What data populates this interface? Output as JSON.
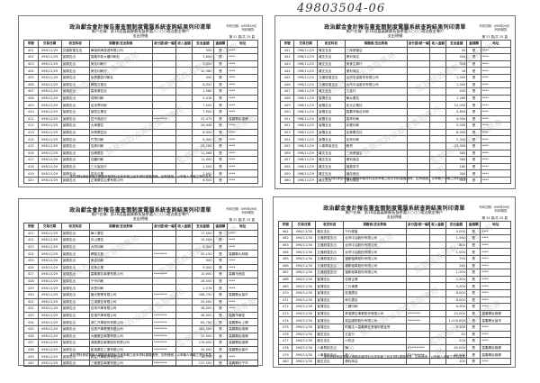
{
  "document_number": "49803504-06",
  "common": {
    "title": "政治獻金會計報告書查閱制度電腦系統查詢結果列印清單",
    "account": "帳戶名稱：第16屆嘉義縣縣長擬參選人○○○政治獻金專戶",
    "section": "支出明細",
    "meta_line1": "列印日期：099年09月",
    "meta_line2": "列印時間：",
    "headers": [
      "序號",
      "交易日期",
      "收支科目",
      "捐贈者/支出對象",
      "身分證/統一編號",
      "收入金額",
      "支出金額",
      "金錢類",
      "地址"
    ],
    "footer": "本件資料係依申報人網路申報資料及其申報之紙本資料建檔清冊，如有錯誤，以申報人申報之資料為準。",
    "watermark": "監察院政治獻金查閱專用"
  },
  "pages": [
    {
      "page_label": "第 21 頁/共 25 頁",
      "rows": [
        [
          "401",
          "098/11/29",
          "交通旅運支出",
          "華榮和海旅遊有限公司",
          "",
          "",
          "500",
          "是",
          "****"
        ],
        [
          "402",
          "098/11/29",
          "宣傳支出",
          "嘉義市新大樓印刷社",
          "",
          "",
          "3,600",
          "是",
          "****"
        ],
        [
          "403",
          "098/11/29",
          "宣傳支出",
          "美佳印刷行",
          "",
          "",
          "3,000",
          "是",
          "****"
        ],
        [
          "404",
          "098/11/29",
          "宣傳支出",
          "美佳印刷行",
          "",
          "",
          "10,360",
          "是",
          "****"
        ],
        [
          "405",
          "098/11/29",
          "宣傳支出",
          "永興廣告印刷社",
          "",
          "",
          "450",
          "是",
          "****"
        ],
        [
          "406",
          "098/11/29",
          "宣傳支出",
          "網路文藝社",
          "",
          "",
          "6,552",
          "是",
          "****"
        ],
        [
          "407",
          "098/11/29",
          "宣傳支出",
          "嘉美廣告社",
          "",
          "",
          "1,560",
          "是",
          "****"
        ],
        [
          "408",
          "098/11/29",
          "宣傳支出",
          "成興印刷",
          "",
          "",
          "5,418",
          "是",
          "****"
        ],
        [
          "409",
          "098/11/29",
          "宣傳支出",
          "佳世界印刷",
          "",
          "",
          "7,500",
          "是",
          "****"
        ],
        [
          "410",
          "098/11/29",
          "宣傳支出",
          "晉陞企業社",
          "",
          "",
          "7,900",
          "是",
          "****"
        ],
        [
          "411",
          "098/11/29",
          "宣傳支出",
          "四代商品行",
          "********",
          "",
          "37,475",
          "是",
          "嘉義縣民雄鄉"
        ],
        [
          "412",
          "098/11/29",
          "宣傳支出",
          "大東廣告",
          "",
          "",
          "28,448",
          "是",
          "****"
        ],
        [
          "413",
          "098/11/29",
          "宣傳支出",
          "永興廣告社",
          "",
          "",
          "6,000",
          "是",
          "****"
        ],
        [
          "414",
          "098/11/29",
          "宣傳支出",
          "竹寬印刷",
          "",
          "",
          "8,000",
          "是",
          "****"
        ],
        [
          "415",
          "098/11/29",
          "宣傳支出",
          "佳美印刷",
          "",
          "",
          "29,250",
          "是",
          "****"
        ],
        [
          "416",
          "098/11/29",
          "宣傳支出",
          "佳網廣告",
          "",
          "",
          "11,066",
          "是",
          "****"
        ],
        [
          "417",
          "098/11/29",
          "宣傳支出",
          "佳鵬印刷",
          "",
          "",
          "11,000",
          "是",
          "****"
        ],
        [
          "418",
          "098/11/29",
          "宣傳支出",
          "三元宣品行",
          "",
          "",
          "1,500",
          "是",
          "****"
        ],
        [
          "419",
          "098/11/29",
          "宣傳支出",
          "宏佳企業",
          "",
          "",
          "2,000",
          "是",
          "****"
        ],
        [
          "420",
          "098/11/29",
          "宣傳支出",
          "正揚廣告企業有限公司",
          "",
          "",
          "6,500",
          "是",
          "****"
        ]
      ]
    },
    {
      "page_label": "第 23 頁/共 25 頁",
      "rows": [
        [
          "441",
          "098/11/29",
          "雜支支出",
          "三商便當店",
          "",
          "",
          "50",
          "是",
          "****"
        ],
        [
          "442",
          "098/11/29",
          "雜支支出",
          "便利商店",
          "",
          "",
          "400",
          "是",
          "****"
        ],
        [
          "443",
          "098/11/29",
          "雜支支出",
          "美食生鮮行",
          "",
          "",
          "316",
          "是",
          "****"
        ],
        [
          "444",
          "098/11/29",
          "雜支支出",
          "便利商店",
          "",
          "",
          "16",
          "是",
          "****"
        ],
        [
          "445",
          "098/11/29",
          "交通旅運支出",
          "台灣中油股份有限公司",
          "",
          "",
          "1,000",
          "是",
          "****"
        ],
        [
          "446",
          "098/11/29",
          "交通旅運支出",
          "台灣中油股份有限公司",
          "",
          "",
          "1,000",
          "是",
          "****"
        ],
        [
          "447",
          "098/11/29",
          "雜支支出",
          "五金行",
          "",
          "",
          "450",
          "是",
          "****"
        ],
        [
          "448",
          "098/11/29",
          "宣傳支出",
          "華太廣告",
          "",
          "",
          "1,260",
          "是",
          "****"
        ],
        [
          "449",
          "098/11/29",
          "宣傳支出",
          "佳元企業社",
          "",
          "",
          "12,000",
          "是",
          "****"
        ],
        [
          "450",
          "098/11/29",
          "宣傳支出",
          "嘉義市聯合印刷",
          "",
          "",
          "4,850",
          "是",
          "****"
        ],
        [
          "451",
          "098/11/29",
          "宣傳支出",
          "嘉禾印刷",
          "",
          "",
          "4,950",
          "是",
          "****"
        ],
        [
          "452",
          "098/11/29",
          "宣傳支出",
          "永業印刷",
          "",
          "",
          "5,000",
          "是",
          "****"
        ],
        [
          "453",
          "098/11/29",
          "宣傳支出",
          "佳美廣告社",
          "",
          "",
          "6,000",
          "是",
          "****"
        ],
        [
          "454",
          "098/11/29",
          "宣傳支出",
          "佳禾印刷",
          "",
          "",
          "2,350",
          "是",
          "****"
        ],
        [
          "455",
          "098/11/29",
          "人事費用支出",
          "薪資",
          "",
          "",
          "23,900",
          "是",
          "****"
        ],
        [
          "456",
          "098/11/29",
          "雜支支出",
          "三商便當店",
          "",
          "",
          "560",
          "是",
          "****"
        ],
        [
          "457",
          "098/11/29",
          "雜支支出",
          "便利商店",
          "",
          "",
          "560",
          "是",
          "****"
        ],
        [
          "458",
          "098/11/29",
          "雜支支出",
          "福壽茶坊",
          "",
          "",
          "180",
          "是",
          "****"
        ],
        [
          "459",
          "098/11/29",
          "雜支支出",
          "福佳食品",
          "",
          "",
          "300",
          "是",
          "****"
        ],
        [
          "460",
          "098/11/29",
          "雜支支出",
          "便利商店",
          "",
          "",
          "350",
          "是",
          "****"
        ]
      ]
    },
    {
      "page_label": "第 22 頁/共 25 頁",
      "rows": [
        [
          "421",
          "098/11/29",
          "宣傳支出",
          "華人廣告",
          "",
          "",
          "17,000",
          "是",
          "****"
        ],
        [
          "422",
          "098/11/29",
          "宣傳支出",
          "中山廣告",
          "",
          "",
          "15,000",
          "是",
          "****"
        ],
        [
          "423",
          "098/11/29",
          "宣傳支出",
          "大同印刷",
          "",
          "",
          "4,500",
          "是",
          "****"
        ],
        [
          "424",
          "098/11/29",
          "宣傳支出",
          "網路文藝",
          "********",
          "",
          "45,150",
          "是",
          "嘉義縣大林鎮"
        ],
        [
          "425",
          "098/11/29",
          "宣傳支出",
          "美佳印刷",
          "",
          "",
          "500",
          "是",
          "****"
        ],
        [
          "426",
          "098/11/29",
          "宣傳支出",
          "佳美企業",
          "",
          "",
          "9,000",
          "是",
          "****"
        ],
        [
          "427",
          "098/11/29",
          "宣傳支出",
          "嘉義廣告事業有限公司",
          "********",
          "",
          "10,000",
          "是",
          "嘉義市西區"
        ],
        [
          "428",
          "098/11/29",
          "宣傳支出",
          "千代印刷",
          "",
          "",
          "28,000",
          "是",
          "****"
        ],
        [
          "429",
          "098/11/29",
          "宣傳支出",
          "永豐印刷",
          "",
          "",
          "2,576",
          "是",
          "****"
        ],
        [
          "430",
          "098/11/29",
          "宣傳支出",
          "國光實業有限公司",
          "********",
          "",
          "168,750",
          "是",
          "嘉義縣太保市"
        ],
        [
          "431",
          "098/11/29",
          "宣傳支出",
          "立達廣告有限公司",
          "",
          "",
          "25,000",
          "是",
          "****"
        ],
        [
          "432",
          "098/11/29",
          "宣傳支出",
          "佳禾汽車有限公司",
          "",
          "",
          "36,000",
          "是",
          "****"
        ],
        [
          "433",
          "098/11/29",
          "宣傳支出",
          "宏達汽車有限公司",
          "********",
          "",
          "48,000",
          "是",
          "嘉義市東區"
        ],
        [
          "434",
          "098/11/29",
          "宣傳支出",
          "鴻仁汽車股份有限公司",
          "********",
          "",
          "84,750",
          "是",
          "嘉義縣水上鄉"
        ],
        [
          "435",
          "098/11/29",
          "宣傳支出",
          "佳昌汽車實業有限公司",
          "********",
          "",
          "262,000",
          "是",
          "嘉義縣民雄鄉"
        ],
        [
          "436",
          "098/11/29",
          "宣傳支出",
          "大鵬廣告事業有限公司",
          "********",
          "",
          "32,000",
          "是",
          "嘉義縣民雄鄉"
        ],
        [
          "437",
          "098/11/29",
          "宣傳支出",
          "鴻展廣告事業股份有限公司",
          "********",
          "",
          "176,000",
          "是",
          "嘉義縣民雄鄉"
        ],
        [
          "438",
          "098/11/29",
          "宣傳支出",
          "凱達廣告工業有限公司",
          "********",
          "",
          "35,000",
          "是",
          "嘉義縣太保市"
        ],
        [
          "439",
          "098/11/29",
          "宣傳支出",
          "新益汽車股份有限公司",
          "",
          "",
          "18,750",
          "是",
          "****"
        ],
        [
          "440",
          "098/11/29",
          "宣傳支出",
          "三峰廣告事業有限公司",
          "********",
          "",
          "137,500",
          "是",
          "嘉義縣朴子市"
        ]
      ]
    },
    {
      "page_label": "第 24 頁/共 25 頁",
      "rows": [
        [
          "461",
          "098/11/30",
          "雜支支出",
          "千代便當",
          "",
          "",
          "4,000",
          "是",
          "****"
        ],
        [
          "462",
          "098/11/30",
          "交通旅運支出",
          "台灣中油股份有限公司",
          "",
          "",
          "1,560",
          "是",
          "****"
        ],
        [
          "463",
          "098/11/30",
          "交通旅運支出",
          "台灣中油股份有限公司",
          "",
          "",
          "600",
          "是",
          "****"
        ],
        [
          "464",
          "098/11/30",
          "交通旅運支出",
          "台灣中油股份有限公司",
          "",
          "",
          "1,000",
          "是",
          "****"
        ],
        [
          "465",
          "098/11/30",
          "交通旅運支出",
          "福斯租車股份有限公司",
          "",
          "",
          "794",
          "是",
          "****"
        ],
        [
          "466",
          "098/11/30",
          "交通旅運支出",
          "福斯租車股份有限公司",
          "",
          "",
          "280",
          "是",
          "****"
        ],
        [
          "467",
          "098/11/30",
          "交通旅運支出",
          "福斯租車股份有限公司",
          "",
          "",
          "1,000",
          "是",
          "****"
        ],
        [
          "468",
          "098/11/30",
          "宣傳支出",
          "佳美企業",
          "",
          "",
          "2,000",
          "是",
          "****"
        ],
        [
          "469",
          "098/11/30",
          "宣傳支出",
          "三元事業",
          "",
          "",
          "3,000",
          "是",
          "****"
        ],
        [
          "470",
          "098/11/30",
          "宣傳支出",
          "宏達廣告",
          "",
          "",
          "8,000",
          "是",
          "****"
        ],
        [
          "471",
          "098/11/30",
          "宣傳支出",
          "和平廣告",
          "",
          "",
          "8,000",
          "是",
          "****"
        ],
        [
          "472",
          "098/11/30",
          "宣傳支出",
          "三峰印刷",
          "",
          "",
          "6,000",
          "是",
          "****"
        ],
        [
          "473",
          "098/11/30",
          "宣傳支出",
          "昇達廣告事業股份有限公司",
          "********",
          "",
          "10,000",
          "是",
          "嘉義縣民雄鄉"
        ],
        [
          "474",
          "098/11/30",
          "宣傳支出",
          "嘉益國際股份有限公司",
          "********",
          "",
          "1,016,600",
          "是",
          "嘉義縣太保市"
        ],
        [
          "475",
          "098/11/30",
          "宣傳支出",
          "財團法人嘉義縣社會福利基金會",
          "",
          "",
          "8,000",
          "是",
          "****"
        ],
        [
          "476",
          "098/11/30",
          "雜支支出",
          "五金行",
          "",
          "",
          "40",
          "是",
          "****"
        ],
        [
          "477",
          "098/11/30",
          "雜支支出",
          "小吃店",
          "",
          "",
          "200",
          "是",
          "****"
        ],
        [
          "478",
          "098/11/30",
          "人事費用支出",
          "陳○○",
          "P1********",
          "",
          "40,000",
          "是",
          "嘉義縣民雄鄉"
        ],
        [
          "479",
          "098/11/30",
          "人事費用支出",
          "林○○",
          "P2********",
          "",
          "40,000",
          "是",
          "嘉義縣民雄鄉"
        ],
        [
          "480",
          "098/11/30",
          "雜支支出",
          "便利商店",
          "",
          "",
          "100",
          "是",
          "****"
        ]
      ]
    }
  ]
}
